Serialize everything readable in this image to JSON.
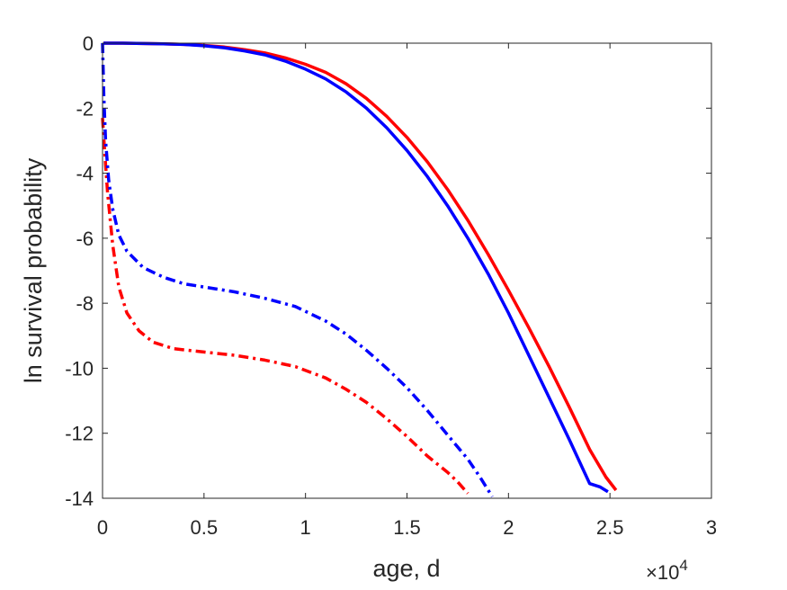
{
  "chart_data": {
    "type": "line",
    "title": "",
    "xlabel": "age, d",
    "ylabel": "ln survival probability",
    "x_exponent_label": "×10",
    "x_exponent_power": "4",
    "xlim": [
      0,
      30000
    ],
    "ylim": [
      -14,
      0
    ],
    "xticks": [
      0,
      5000,
      10000,
      15000,
      20000,
      25000,
      30000
    ],
    "xtick_labels": [
      "0",
      "0.5",
      "1",
      "1.5",
      "2",
      "2.5",
      "3"
    ],
    "yticks": [
      0,
      -2,
      -4,
      -6,
      -8,
      -10,
      -12,
      -14
    ],
    "ytick_labels": [
      "0",
      "-2",
      "-4",
      "-6",
      "-8",
      "-10",
      "-12",
      "-14"
    ],
    "grid": false,
    "legend": "none",
    "series": [
      {
        "style": "solid",
        "color": "#ff0000",
        "points": [
          [
            50,
            0
          ],
          [
            1000,
            0
          ],
          [
            2000,
            -0.01
          ],
          [
            3000,
            -0.02
          ],
          [
            4000,
            -0.04
          ],
          [
            5000,
            -0.07
          ],
          [
            6000,
            -0.12
          ],
          [
            7000,
            -0.2
          ],
          [
            8000,
            -0.3
          ],
          [
            9000,
            -0.45
          ],
          [
            10000,
            -0.65
          ],
          [
            11000,
            -0.9
          ],
          [
            12000,
            -1.25
          ],
          [
            13000,
            -1.7
          ],
          [
            14000,
            -2.25
          ],
          [
            15000,
            -2.9
          ],
          [
            16000,
            -3.65
          ],
          [
            17000,
            -4.5
          ],
          [
            18000,
            -5.45
          ],
          [
            19000,
            -6.5
          ],
          [
            20000,
            -7.6
          ],
          [
            21000,
            -8.75
          ],
          [
            22000,
            -9.95
          ],
          [
            23000,
            -11.2
          ],
          [
            24000,
            -12.5
          ],
          [
            24800,
            -13.35
          ],
          [
            25300,
            -13.75
          ]
        ]
      },
      {
        "style": "solid",
        "color": "#0000ff",
        "points": [
          [
            50,
            0
          ],
          [
            1000,
            0
          ],
          [
            2000,
            -0.01
          ],
          [
            3000,
            -0.02
          ],
          [
            4000,
            -0.04
          ],
          [
            5000,
            -0.08
          ],
          [
            6000,
            -0.14
          ],
          [
            7000,
            -0.24
          ],
          [
            8000,
            -0.36
          ],
          [
            9000,
            -0.55
          ],
          [
            10000,
            -0.8
          ],
          [
            11000,
            -1.1
          ],
          [
            12000,
            -1.5
          ],
          [
            13000,
            -2.0
          ],
          [
            14000,
            -2.6
          ],
          [
            15000,
            -3.3
          ],
          [
            16000,
            -4.1
          ],
          [
            17000,
            -5.0
          ],
          [
            18000,
            -6.0
          ],
          [
            19000,
            -7.1
          ],
          [
            20000,
            -8.3
          ],
          [
            21000,
            -9.6
          ],
          [
            22000,
            -10.9
          ],
          [
            23000,
            -12.2
          ],
          [
            24000,
            -13.55
          ],
          [
            24500,
            -13.65
          ],
          [
            24900,
            -13.8
          ]
        ]
      },
      {
        "style": "dashdot",
        "color": "#ff0000",
        "points": [
          [
            0,
            -2.3
          ],
          [
            100,
            -3.3
          ],
          [
            250,
            -4.6
          ],
          [
            500,
            -6.2
          ],
          [
            800,
            -7.5
          ],
          [
            1200,
            -8.3
          ],
          [
            1800,
            -8.85
          ],
          [
            2500,
            -9.2
          ],
          [
            3500,
            -9.4
          ],
          [
            5000,
            -9.5
          ],
          [
            6500,
            -9.6
          ],
          [
            8000,
            -9.75
          ],
          [
            9500,
            -9.95
          ],
          [
            11000,
            -10.3
          ],
          [
            12000,
            -10.65
          ],
          [
            13000,
            -11.05
          ],
          [
            14000,
            -11.55
          ],
          [
            15000,
            -12.1
          ],
          [
            16000,
            -12.7
          ],
          [
            17000,
            -13.2
          ],
          [
            17500,
            -13.5
          ],
          [
            18000,
            -13.85
          ]
        ]
      },
      {
        "style": "dashdot",
        "color": "#0000ff",
        "points": [
          [
            0,
            0
          ],
          [
            60,
            -1.6
          ],
          [
            150,
            -3.0
          ],
          [
            300,
            -4.2
          ],
          [
            500,
            -5.1
          ],
          [
            800,
            -5.9
          ],
          [
            1200,
            -6.4
          ],
          [
            2000,
            -6.9
          ],
          [
            3000,
            -7.2
          ],
          [
            4000,
            -7.4
          ],
          [
            5000,
            -7.5
          ],
          [
            6500,
            -7.65
          ],
          [
            8000,
            -7.85
          ],
          [
            9500,
            -8.1
          ],
          [
            11000,
            -8.55
          ],
          [
            12000,
            -8.95
          ],
          [
            13000,
            -9.45
          ],
          [
            14000,
            -10.0
          ],
          [
            15000,
            -10.6
          ],
          [
            16000,
            -11.3
          ],
          [
            17000,
            -12.05
          ],
          [
            18000,
            -12.8
          ],
          [
            18600,
            -13.35
          ],
          [
            19200,
            -13.95
          ]
        ]
      }
    ]
  }
}
